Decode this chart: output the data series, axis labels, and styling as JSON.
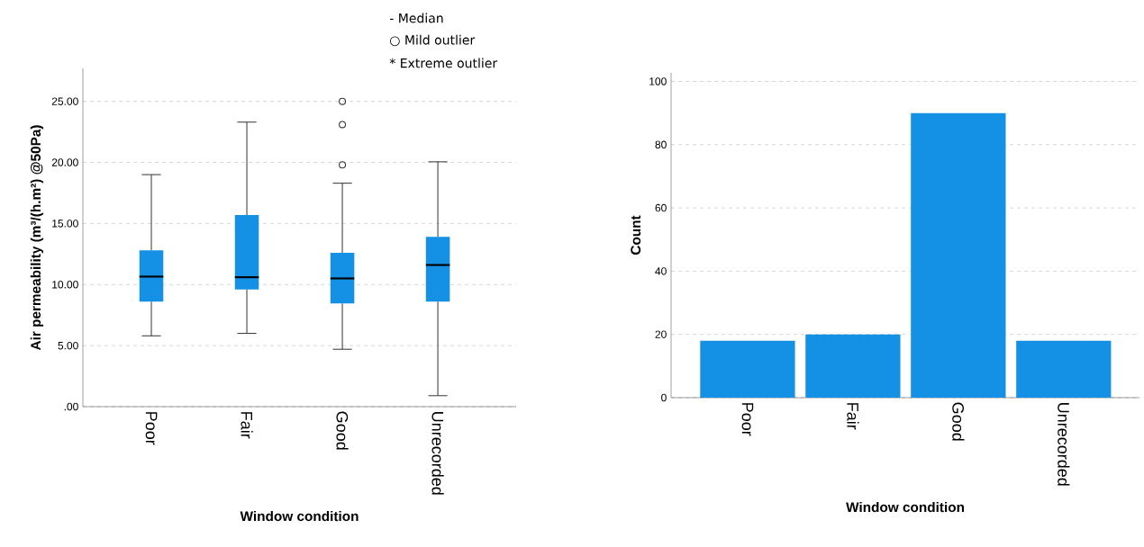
{
  "chart_data": [
    {
      "type": "box",
      "categories": [
        "Poor",
        "Fair",
        "Good",
        "Unrecorded"
      ],
      "boxes": [
        {
          "low": 5.8,
          "q1": 8.6,
          "median": 10.65,
          "q3": 12.8,
          "high": 19.0
        },
        {
          "low": 6.0,
          "q1": 9.6,
          "median": 10.6,
          "q3": 15.7,
          "high": 23.3
        },
        {
          "low": 4.7,
          "q1": 8.45,
          "median": 10.5,
          "q3": 12.6,
          "high": 18.3,
          "outliers": [
            25.0,
            23.1,
            19.8
          ]
        },
        {
          "low": 0.9,
          "q1": 8.6,
          "median": 11.6,
          "q3": 13.9,
          "high": 20.05
        }
      ],
      "color": "#1490e4",
      "ylim": [
        0,
        27.7
      ],
      "yticks": [
        {
          "value": 0,
          "label": ".00"
        },
        {
          "value": 5,
          "label": "5.00"
        },
        {
          "value": 10,
          "label": "10.00"
        },
        {
          "value": 15,
          "label": "15.00"
        },
        {
          "value": 20,
          "label": "20.00"
        },
        {
          "value": 25,
          "label": "25.00"
        }
      ],
      "xlabel": "Window condition",
      "ylabel": "Air permeability (m³/(h.m²) @50Pa)",
      "grid": "y",
      "annotations": [
        "-  Median",
        "○ Mild outlier",
        "*  Extreme outlier"
      ]
    },
    {
      "type": "bar",
      "categories": [
        "Poor",
        "Fair",
        "Good",
        "Unrecorded"
      ],
      "values": [
        18,
        20,
        90,
        18
      ],
      "color": "#1490e4",
      "ylim": [
        0,
        102.7
      ],
      "yticks": [
        0,
        20,
        40,
        60,
        80,
        100
      ],
      "xlabel": "Window condition",
      "ylabel": "Count",
      "grid": "y"
    }
  ]
}
